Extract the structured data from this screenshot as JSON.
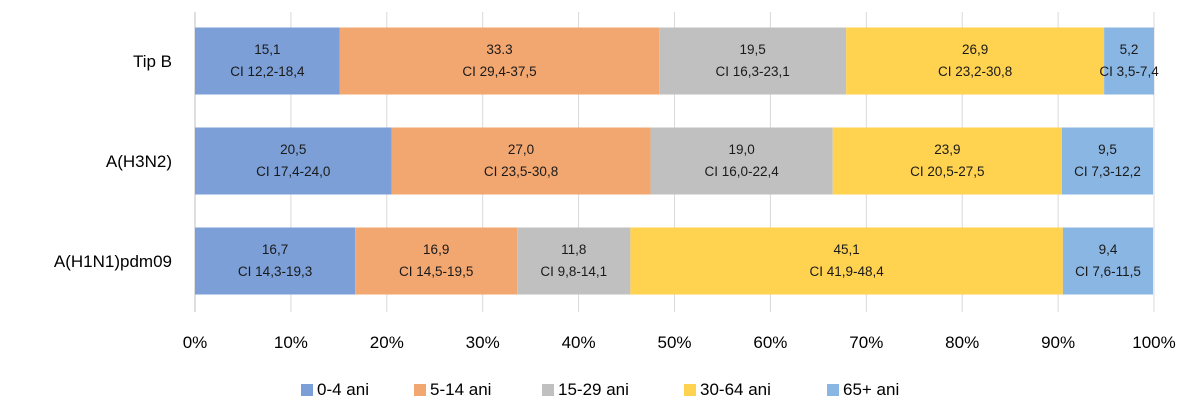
{
  "chart_data": {
    "type": "bar",
    "orientation": "horizontal",
    "stacked": "percent",
    "categories": [
      "Tip B",
      "A(H3N2)",
      "A(H1N1)pdm09"
    ],
    "series": [
      {
        "name": "0-4 ani",
        "color": "#7b9fd6",
        "values": [
          15.1,
          20.5,
          16.7
        ],
        "labels": [
          "15,1",
          "20,5",
          "16,7"
        ],
        "ci": [
          "CI 12,2-18,4",
          "CI 17,4-24,0",
          "CI 14,3-19,3"
        ]
      },
      {
        "name": "5-14 ani",
        "color": "#f3a770",
        "values": [
          33.3,
          27.0,
          16.9
        ],
        "labels": [
          "33.3",
          "27,0",
          "16,9"
        ],
        "ci": [
          "CI 29,4-37,5",
          "CI 23,5-30,8",
          "CI 14,5-19,5"
        ]
      },
      {
        "name": "15-29 ani",
        "color": "#c0c0c0",
        "values": [
          19.5,
          19.0,
          11.8
        ],
        "labels": [
          "19,5",
          "19,0",
          "11,8"
        ],
        "ci": [
          "CI 16,3-23,1",
          "CI 16,0-22,4",
          "CI 9,8-14,1"
        ]
      },
      {
        "name": "30-64 ani",
        "color": "#ffd24f",
        "values": [
          26.9,
          23.9,
          45.1
        ],
        "labels": [
          "26,9",
          "23,9",
          "45,1"
        ],
        "ci": [
          "CI 23,2-30,8",
          "CI 20,5-27,5",
          "CI 41,9-48,4"
        ]
      },
      {
        "name": "65+ ani",
        "color": "#8ab6e3",
        "values": [
          5.2,
          9.5,
          9.4
        ],
        "labels": [
          "5,2",
          "9,5",
          "9,4"
        ],
        "ci": [
          "CI 3,5-7,4",
          "CI 7,3-12,2",
          "CI 7,6-11,5"
        ]
      }
    ],
    "xlim": [
      0,
      100
    ],
    "xticks": [
      "0%",
      "10%",
      "20%",
      "30%",
      "40%",
      "50%",
      "60%",
      "70%",
      "80%",
      "90%",
      "100%"
    ],
    "grid": true,
    "legend_position": "bottom"
  }
}
